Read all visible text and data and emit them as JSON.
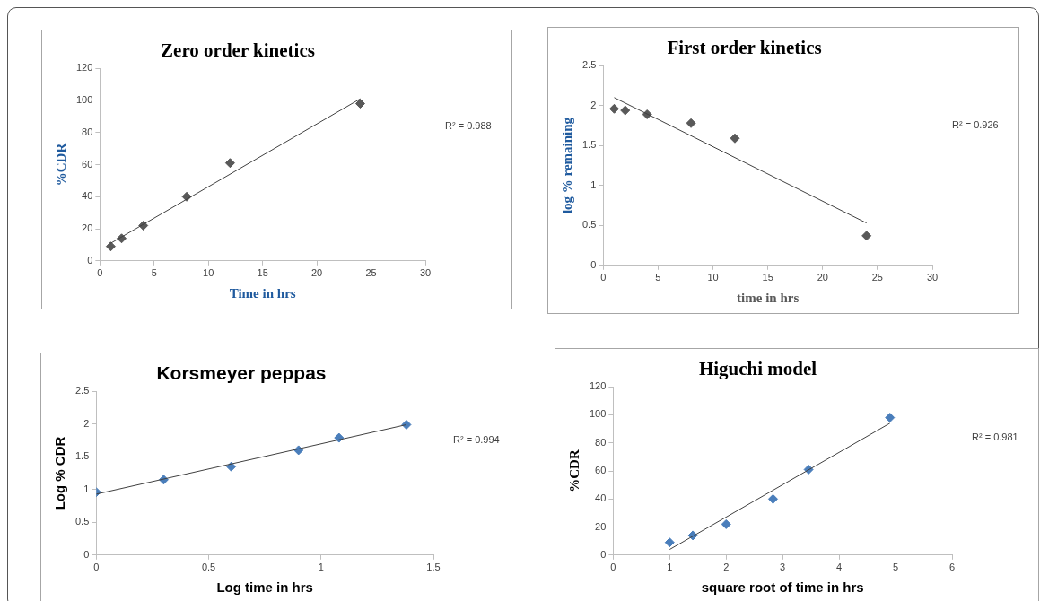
{
  "chart_data": [
    {
      "type": "scatter",
      "title": "Zero order kinetics",
      "xlabel": "Time in hrs",
      "ylabel": "%CDR",
      "grid": false,
      "legend": false,
      "xlim": [
        0,
        30
      ],
      "xticks": [
        0,
        5,
        10,
        15,
        20,
        25,
        30
      ],
      "ylim": [
        0,
        120
      ],
      "yticks": [
        0,
        20,
        40,
        60,
        80,
        100,
        120
      ],
      "series": [
        {
          "type": "scatter",
          "marker": "diamond",
          "color": "#595959",
          "x": [
            1,
            2,
            4,
            8,
            12,
            24
          ],
          "values": [
            9,
            14,
            22,
            40,
            61,
            98
          ]
        },
        {
          "type": "line",
          "marker": "none",
          "color": "#404040",
          "x": [
            1,
            24
          ],
          "values": [
            11,
            101
          ]
        }
      ],
      "annotations": [
        "R² = 0.988"
      ]
    },
    {
      "type": "scatter",
      "title": "First order kinetics",
      "xlabel": "time in hrs",
      "ylabel": "log % remaining",
      "grid": false,
      "legend": false,
      "xlim": [
        0,
        30
      ],
      "xticks": [
        0,
        5,
        10,
        15,
        20,
        25,
        30
      ],
      "ylim": [
        0,
        2.5
      ],
      "yticks": [
        0,
        0.5,
        1,
        1.5,
        2,
        2.5
      ],
      "series": [
        {
          "type": "scatter",
          "marker": "diamond",
          "color": "#595959",
          "x": [
            1,
            2,
            4,
            8,
            12,
            24
          ],
          "values": [
            1.96,
            1.94,
            1.89,
            1.78,
            1.59,
            0.37
          ]
        },
        {
          "type": "line",
          "marker": "none",
          "color": "#404040",
          "x": [
            1,
            24
          ],
          "values": [
            2.1,
            0.53
          ]
        }
      ],
      "annotations": [
        "R² = 0.926"
      ]
    },
    {
      "type": "scatter",
      "title": "Korsmeyer peppas",
      "xlabel": "Log time in hrs",
      "ylabel": "Log % CDR",
      "grid": false,
      "legend": false,
      "xlim": [
        0,
        1.5
      ],
      "xticks": [
        0,
        0.5,
        1,
        1.5
      ],
      "ylim": [
        0,
        2.5
      ],
      "yticks": [
        0,
        0.5,
        1,
        1.5,
        2,
        2.5
      ],
      "series": [
        {
          "type": "scatter",
          "marker": "diamond",
          "color": "#4a7ebb",
          "x": [
            0,
            0.3,
            0.6,
            0.9,
            1.08,
            1.38
          ],
          "values": [
            0.96,
            1.15,
            1.35,
            1.6,
            1.79,
            1.99
          ]
        },
        {
          "type": "line",
          "marker": "none",
          "color": "#404040",
          "x": [
            0,
            1.38
          ],
          "values": [
            0.93,
            1.99
          ]
        }
      ],
      "annotations": [
        "R² = 0.994"
      ]
    },
    {
      "type": "scatter",
      "title": "Higuchi model",
      "xlabel": "square root of time in hrs",
      "ylabel": "%CDR",
      "grid": false,
      "legend": false,
      "xlim": [
        0,
        6
      ],
      "xticks": [
        0,
        1,
        2,
        3,
        4,
        5,
        6
      ],
      "ylim": [
        0,
        120
      ],
      "yticks": [
        0,
        20,
        40,
        60,
        80,
        100,
        120
      ],
      "series": [
        {
          "type": "scatter",
          "marker": "diamond",
          "color": "#4a7ebb",
          "x": [
            1,
            1.41,
            2,
            2.83,
            3.46,
            4.9
          ],
          "values": [
            9,
            14,
            22,
            40,
            61,
            98
          ]
        },
        {
          "type": "line",
          "marker": "none",
          "color": "#404040",
          "x": [
            1,
            4.9
          ],
          "values": [
            4,
            94
          ]
        }
      ],
      "annotations": [
        "R² = 0.981"
      ]
    }
  ]
}
